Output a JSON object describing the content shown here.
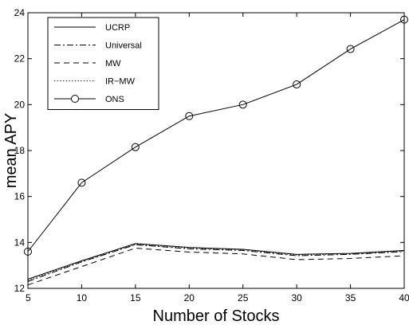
{
  "chart_data": {
    "type": "line",
    "xlabel": "Number of Stocks",
    "ylabel": "mean APY",
    "x": [
      5,
      10,
      15,
      20,
      25,
      30,
      35,
      40
    ],
    "xlim": [
      5,
      40
    ],
    "ylim": [
      12,
      24
    ],
    "xticks": [
      "5",
      "10",
      "15",
      "20",
      "25",
      "30",
      "35",
      "40"
    ],
    "yticks": [
      "12",
      "14",
      "16",
      "18",
      "20",
      "22",
      "24"
    ],
    "grid": false,
    "legend_position": "top-left",
    "series": [
      {
        "name": "UCRP",
        "style": "solid",
        "marker": "none",
        "values": [
          12.4,
          13.2,
          13.95,
          13.78,
          13.7,
          13.48,
          13.52,
          13.65
        ]
      },
      {
        "name": "Universal",
        "style": "dashdot",
        "marker": "none",
        "values": [
          12.3,
          13.15,
          13.9,
          13.72,
          13.65,
          13.42,
          13.48,
          13.6
        ]
      },
      {
        "name": "MW",
        "style": "dashed",
        "marker": "none",
        "values": [
          12.15,
          12.95,
          13.75,
          13.58,
          13.5,
          13.25,
          13.3,
          13.42
        ]
      },
      {
        "name": "IR−MW",
        "style": "dotted",
        "marker": "none",
        "values": [
          12.35,
          13.18,
          13.92,
          13.75,
          13.68,
          13.45,
          13.5,
          13.62
        ]
      },
      {
        "name": "ONS",
        "style": "solid",
        "marker": "circle",
        "values": [
          13.6,
          16.6,
          18.15,
          19.5,
          20.0,
          20.88,
          22.42,
          23.7
        ]
      }
    ]
  }
}
